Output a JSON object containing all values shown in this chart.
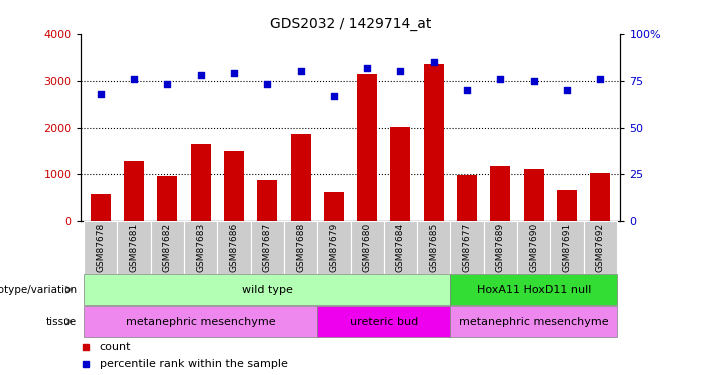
{
  "title": "GDS2032 / 1429714_at",
  "samples": [
    "GSM87678",
    "GSM87681",
    "GSM87682",
    "GSM87683",
    "GSM87686",
    "GSM87687",
    "GSM87688",
    "GSM87679",
    "GSM87680",
    "GSM87684",
    "GSM87685",
    "GSM87677",
    "GSM87689",
    "GSM87690",
    "GSM87691",
    "GSM87692"
  ],
  "counts": [
    580,
    1290,
    960,
    1650,
    1490,
    880,
    1860,
    620,
    3150,
    2010,
    3350,
    990,
    1180,
    1120,
    660,
    1040
  ],
  "percentiles": [
    68,
    76,
    73,
    78,
    79,
    73,
    80,
    67,
    82,
    80,
    85,
    70,
    76,
    75,
    70,
    76
  ],
  "ylim_left": [
    0,
    4000
  ],
  "ylim_right": [
    0,
    100
  ],
  "yticks_left": [
    0,
    1000,
    2000,
    3000,
    4000
  ],
  "yticks_right": [
    0,
    25,
    50,
    75,
    100
  ],
  "bar_color": "#cc0000",
  "dot_color": "#0000cc",
  "plot_bg": "#ffffff",
  "genotype_groups": [
    {
      "label": "wild type",
      "start": 0,
      "end": 10,
      "color": "#b3ffb3"
    },
    {
      "label": "HoxA11 HoxD11 null",
      "start": 11,
      "end": 15,
      "color": "#33dd33"
    }
  ],
  "tissue_groups": [
    {
      "label": "metanephric mesenchyme",
      "start": 0,
      "end": 6,
      "color": "#ee88ee"
    },
    {
      "label": "ureteric bud",
      "start": 7,
      "end": 10,
      "color": "#ee00ee"
    },
    {
      "label": "metanephric mesenchyme",
      "start": 11,
      "end": 15,
      "color": "#ee88ee"
    }
  ],
  "legend_count_label": "count",
  "legend_pct_label": "percentile rank within the sample",
  "genotype_row_label": "genotype/variation",
  "tissue_row_label": "tissue",
  "xtick_bg": "#cccccc",
  "dot_size": 18
}
